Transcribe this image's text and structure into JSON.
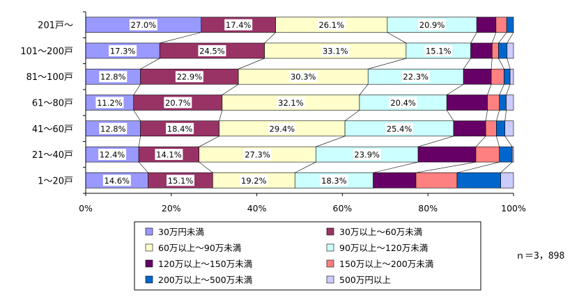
{
  "chart_data": {
    "type": "bar",
    "stacked_percent": true,
    "orientation": "horizontal",
    "categories": [
      "201戸～",
      "101～200戸",
      "81～100戸",
      "61～80戸",
      "41～60戸",
      "21～40戸",
      "1～20戸"
    ],
    "xlim": [
      0,
      100
    ],
    "xticks": [
      "0%",
      "20%",
      "40%",
      "60%",
      "80%",
      "100%"
    ],
    "series": [
      {
        "name": "30万円未満",
        "color": "#9999ff",
        "values": [
          27.0,
          17.3,
          12.8,
          11.2,
          12.8,
          12.4,
          14.6
        ],
        "labels": [
          "27.0%",
          "17.3%",
          "12.8%",
          "11.2%",
          "12.8%",
          "12.4%",
          "14.6%"
        ]
      },
      {
        "name": "30万以上～60万未満",
        "color": "#993366",
        "values": [
          17.4,
          24.5,
          22.9,
          20.7,
          18.4,
          14.1,
          15.1
        ],
        "labels": [
          "17.4%",
          "24.5%",
          "22.9%",
          "20.7%",
          "18.4%",
          "14.1%",
          "15.1%"
        ]
      },
      {
        "name": "60万以上～90万未満",
        "color": "#ffffcc",
        "values": [
          26.1,
          33.1,
          30.3,
          32.1,
          29.4,
          27.3,
          19.2
        ],
        "labels": [
          "26.1%",
          "33.1%",
          "30.3%",
          "32.1%",
          "29.4%",
          "27.3%",
          "19.2%"
        ]
      },
      {
        "name": "90万以上～120万未満",
        "color": "#ccffff",
        "values": [
          20.9,
          15.1,
          22.3,
          20.4,
          25.4,
          23.9,
          18.3
        ],
        "labels": [
          "20.9%",
          "15.1%",
          "22.3%",
          "20.4%",
          "25.4%",
          "23.9%",
          "18.3%"
        ]
      },
      {
        "name": "120万以上～150万未満",
        "color": "#660066",
        "values": [
          4.5,
          5.0,
          6.5,
          9.5,
          7.5,
          13.5,
          10.0
        ],
        "labels": [
          "",
          "",
          "",
          "",
          "",
          "",
          ""
        ]
      },
      {
        "name": "150万以上～200万未満",
        "color": "#ff8080",
        "values": [
          2.5,
          1.5,
          3.0,
          2.8,
          2.5,
          5.5,
          9.6
        ],
        "labels": [
          "",
          "",
          "",
          "",
          "",
          "",
          ""
        ]
      },
      {
        "name": "200万以上～500万未満",
        "color": "#0066cc",
        "values": [
          1.6,
          2.0,
          1.4,
          1.6,
          2.0,
          3.0,
          10.2
        ],
        "labels": [
          "",
          "",
          "",
          "",
          "",
          "",
          ""
        ]
      },
      {
        "name": "500万円以上",
        "color": "#ccccff",
        "values": [
          0.0,
          1.5,
          0.8,
          1.7,
          2.0,
          0.3,
          3.0
        ],
        "labels": [
          "",
          "",
          "",
          "",
          "",
          "",
          ""
        ]
      }
    ],
    "legend_position": "bottom",
    "note": "ｎ＝3，898"
  }
}
